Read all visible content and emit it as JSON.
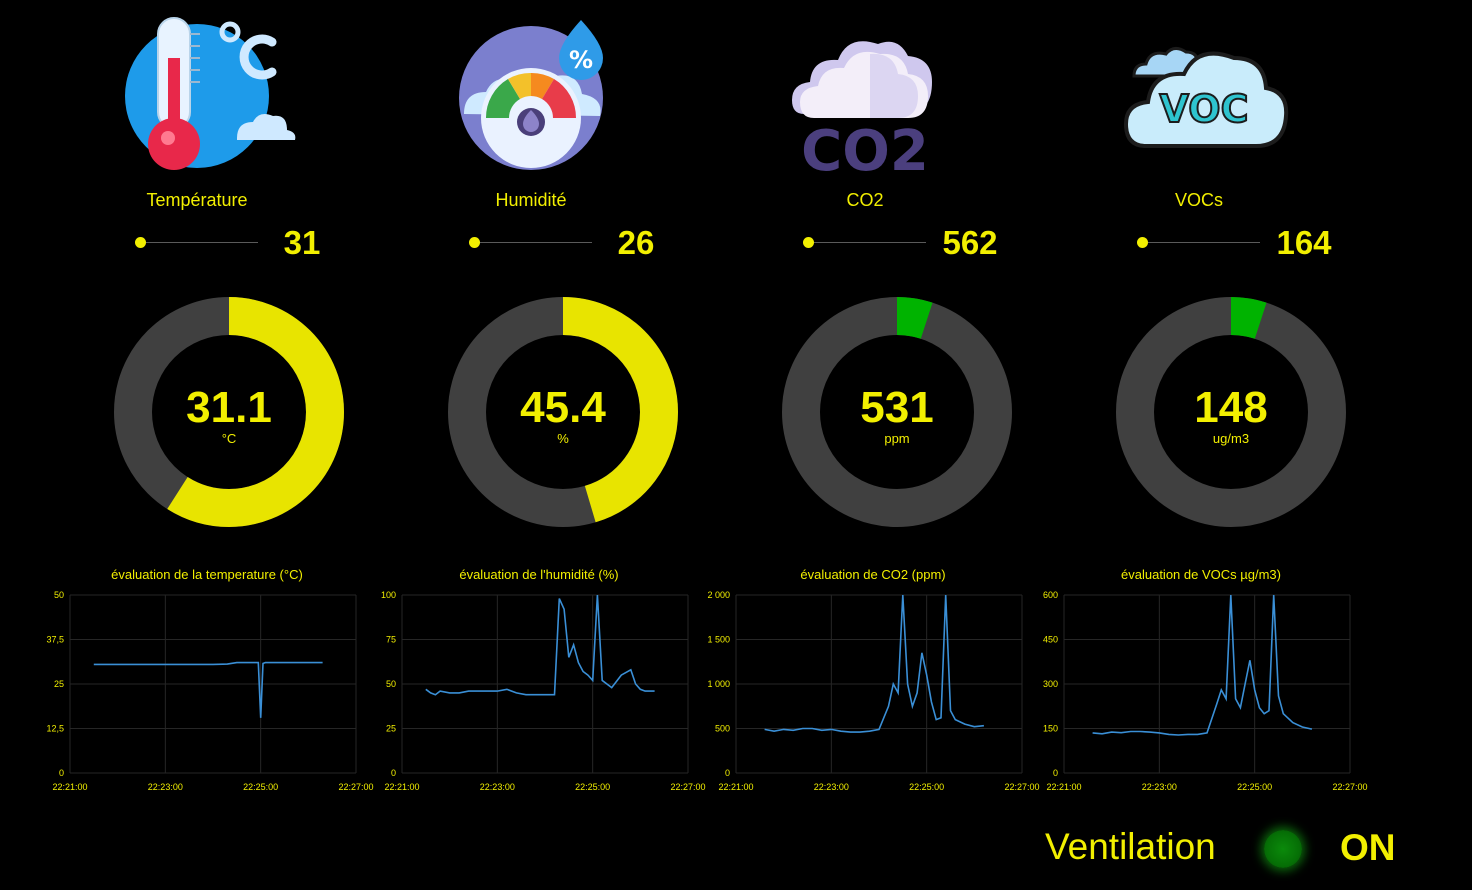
{
  "colors": {
    "accent": "#f2ef00",
    "gauge_track": "#404040",
    "gauge_ok": "#00b300",
    "line": "#3a8fd6",
    "grid": "#262626"
  },
  "cards": [
    {
      "id": "temperature",
      "icon": "thermometer-icon",
      "label": "Température",
      "slider_value": "31",
      "slider_fraction": 0.0,
      "gauge_value": "31.1",
      "gauge_unit": "°C",
      "gauge_fraction": 0.59,
      "gauge_color": "#e8e400"
    },
    {
      "id": "humidity",
      "icon": "humidity-gauge-icon",
      "label": "Humidité",
      "slider_value": "26",
      "slider_fraction": 0.0,
      "gauge_value": "45.4",
      "gauge_unit": "%",
      "gauge_fraction": 0.454,
      "gauge_color": "#e8e400"
    },
    {
      "id": "co2",
      "icon": "co2-cloud-icon",
      "label": "CO2",
      "slider_value": "562",
      "slider_fraction": 0.0,
      "gauge_value": "531",
      "gauge_unit": "ppm",
      "gauge_fraction": 0.05,
      "gauge_color": "#00b300"
    },
    {
      "id": "vocs",
      "icon": "voc-cloud-icon",
      "label": "VOCs",
      "slider_value": "164",
      "slider_fraction": 0.0,
      "gauge_value": "148",
      "gauge_unit": "ug/m3",
      "gauge_fraction": 0.05,
      "gauge_color": "#00b300"
    }
  ],
  "chart_data": [
    {
      "type": "line",
      "title": "évaluation de la temperature (°C)",
      "x_ticks": [
        "22:21:00",
        "22:23:00",
        "22:25:00",
        "22:27:00"
      ],
      "xlim_minutes": [
        0,
        6
      ],
      "y_ticks": [
        "0",
        "12,5",
        "25",
        "37,5",
        "50"
      ],
      "y_tick_values": [
        0,
        12.5,
        25,
        37.5,
        50
      ],
      "ylim": [
        0,
        50
      ],
      "grid": true,
      "series": [
        {
          "x": [
            0.5,
            1.0,
            1.5,
            2.0,
            2.5,
            3.0,
            3.3,
            3.5,
            3.8,
            3.95,
            4.0,
            4.05,
            4.1,
            4.4,
            4.8,
            5.0,
            5.3
          ],
          "values": [
            30.5,
            30.5,
            30.5,
            30.5,
            30.5,
            30.5,
            30.6,
            31.0,
            31.0,
            31.0,
            15.5,
            30.8,
            31.0,
            31.0,
            31.0,
            31.0,
            31.0
          ]
        }
      ]
    },
    {
      "type": "line",
      "title": "évaluation de l'humidité (%)",
      "x_ticks": [
        "22:21:00",
        "22:23:00",
        "22:25:00",
        "22:27:00"
      ],
      "xlim_minutes": [
        0,
        6
      ],
      "y_ticks": [
        "0",
        "25",
        "50",
        "75",
        "100"
      ],
      "y_tick_values": [
        0,
        25,
        50,
        75,
        100
      ],
      "ylim": [
        0,
        100
      ],
      "grid": true,
      "series": [
        {
          "x": [
            0.5,
            0.6,
            0.7,
            0.8,
            1.0,
            1.2,
            1.4,
            1.6,
            1.8,
            2.0,
            2.2,
            2.4,
            2.6,
            2.8,
            3.0,
            3.2,
            3.3,
            3.4,
            3.5,
            3.6,
            3.7,
            3.8,
            3.9,
            4.0,
            4.1,
            4.2,
            4.4,
            4.6,
            4.8,
            4.9,
            5.0,
            5.1,
            5.3
          ],
          "values": [
            47,
            45,
            44,
            46,
            45,
            45,
            46,
            46,
            46,
            46,
            47,
            45,
            44,
            44,
            44,
            44,
            98,
            92,
            65,
            72,
            62,
            57,
            55,
            52,
            100,
            52,
            48,
            55,
            58,
            50,
            47,
            46,
            46
          ]
        }
      ]
    },
    {
      "type": "line",
      "title": "évaluation de CO2 (ppm)",
      "x_ticks": [
        "22:21:00",
        "22:23:00",
        "22:25:00",
        "22:27:00"
      ],
      "xlim_minutes": [
        0,
        6
      ],
      "y_ticks": [
        "0",
        "500",
        "1 000",
        "1 500",
        "2 000"
      ],
      "y_tick_values": [
        0,
        500,
        1000,
        1500,
        2000
      ],
      "ylim": [
        0,
        2000
      ],
      "grid": true,
      "series": [
        {
          "x": [
            0.6,
            0.8,
            1.0,
            1.2,
            1.4,
            1.6,
            1.8,
            2.0,
            2.2,
            2.4,
            2.6,
            2.8,
            3.0,
            3.2,
            3.3,
            3.4,
            3.5,
            3.6,
            3.7,
            3.8,
            3.9,
            4.0,
            4.1,
            4.2,
            4.3,
            4.4,
            4.5,
            4.6,
            4.8,
            5.0,
            5.2
          ],
          "values": [
            490,
            470,
            490,
            480,
            500,
            500,
            480,
            490,
            470,
            460,
            460,
            470,
            490,
            750,
            1000,
            900,
            2000,
            1000,
            750,
            900,
            1350,
            1100,
            800,
            600,
            620,
            2000,
            700,
            600,
            550,
            520,
            531
          ]
        }
      ]
    },
    {
      "type": "line",
      "title": "évaluation de VOCs µg/m3)",
      "x_ticks": [
        "22:21:00",
        "22:23:00",
        "22:25:00",
        "22:27:00"
      ],
      "xlim_minutes": [
        0,
        6
      ],
      "y_ticks": [
        "0",
        "150",
        "300",
        "450",
        "600"
      ],
      "y_tick_values": [
        0,
        150,
        300,
        450,
        600
      ],
      "ylim": [
        0,
        600
      ],
      "grid": true,
      "series": [
        {
          "x": [
            0.6,
            0.8,
            1.0,
            1.2,
            1.4,
            1.6,
            1.8,
            2.0,
            2.2,
            2.4,
            2.6,
            2.8,
            3.0,
            3.2,
            3.3,
            3.4,
            3.5,
            3.6,
            3.7,
            3.8,
            3.9,
            4.0,
            4.1,
            4.2,
            4.3,
            4.4,
            4.5,
            4.6,
            4.8,
            5.0,
            5.2
          ],
          "values": [
            135,
            132,
            138,
            136,
            140,
            140,
            138,
            135,
            130,
            128,
            130,
            130,
            135,
            230,
            280,
            250,
            600,
            250,
            220,
            300,
            380,
            280,
            220,
            200,
            210,
            600,
            260,
            200,
            170,
            155,
            148
          ]
        }
      ]
    }
  ],
  "ventilation": {
    "label": "Ventilation",
    "state": "ON",
    "led_color": "#067006"
  }
}
